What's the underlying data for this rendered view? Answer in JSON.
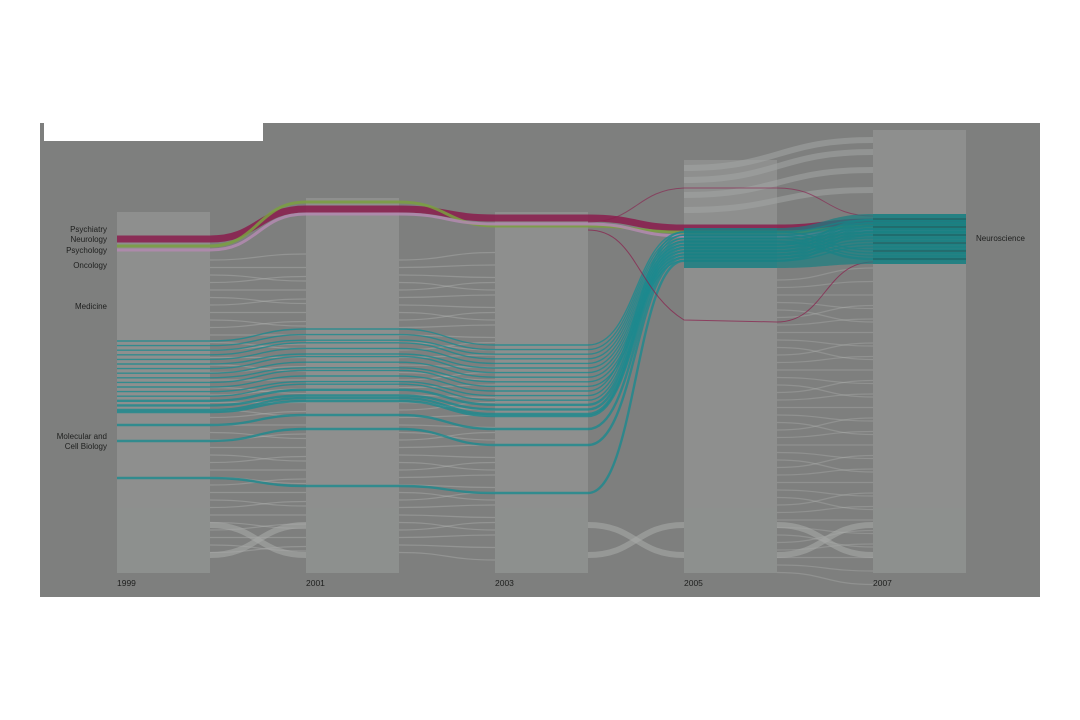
{
  "chart_data": {
    "type": "alluvial",
    "title": "",
    "x_ticks": [
      "1999",
      "2001",
      "2003",
      "2005",
      "2007"
    ],
    "left_labels": [
      {
        "text": "Psychiatry"
      },
      {
        "text": "Neurology"
      },
      {
        "text": "Psychology"
      },
      {
        "text": "Oncology"
      },
      {
        "text": "Medicine"
      },
      {
        "text": "Molecular and",
        "text2": "Cell Biology"
      }
    ],
    "right_labels": [
      {
        "text": "Neuroscience"
      }
    ],
    "colors": {
      "background": "#7e7f7e",
      "column": "#9a9c9a",
      "psychiatry": "#8a1c4c",
      "neurology": "#7aa040",
      "cell_biology": "#1b8a8e",
      "neuroscience": "#1a7f82"
    }
  }
}
